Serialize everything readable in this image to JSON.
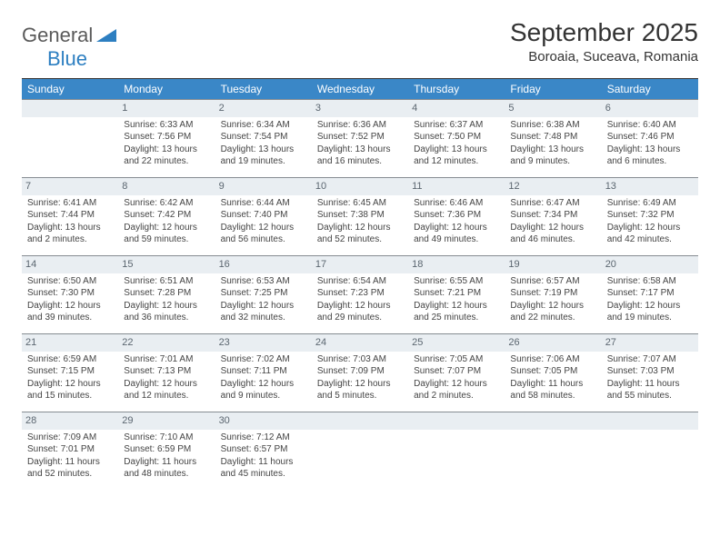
{
  "brand": {
    "line1": "General",
    "line2": "Blue"
  },
  "title": "September 2025",
  "location": "Boroaia, Suceava, Romania",
  "colors": {
    "header_bg": "#3a87c7",
    "header_text": "#ffffff",
    "daynum_bg": "#e9eef2",
    "daynum_border": "#868c92",
    "daynum_text": "#5b6670",
    "body_text": "#333333",
    "logo_blue": "#2d7fc1"
  },
  "weekdays": [
    "Sunday",
    "Monday",
    "Tuesday",
    "Wednesday",
    "Thursday",
    "Friday",
    "Saturday"
  ],
  "grid": [
    [
      null,
      {
        "n": "1",
        "sr": "Sunrise: 6:33 AM",
        "ss": "Sunset: 7:56 PM",
        "d1": "Daylight: 13 hours",
        "d2": "and 22 minutes."
      },
      {
        "n": "2",
        "sr": "Sunrise: 6:34 AM",
        "ss": "Sunset: 7:54 PM",
        "d1": "Daylight: 13 hours",
        "d2": "and 19 minutes."
      },
      {
        "n": "3",
        "sr": "Sunrise: 6:36 AM",
        "ss": "Sunset: 7:52 PM",
        "d1": "Daylight: 13 hours",
        "d2": "and 16 minutes."
      },
      {
        "n": "4",
        "sr": "Sunrise: 6:37 AM",
        "ss": "Sunset: 7:50 PM",
        "d1": "Daylight: 13 hours",
        "d2": "and 12 minutes."
      },
      {
        "n": "5",
        "sr": "Sunrise: 6:38 AM",
        "ss": "Sunset: 7:48 PM",
        "d1": "Daylight: 13 hours",
        "d2": "and 9 minutes."
      },
      {
        "n": "6",
        "sr": "Sunrise: 6:40 AM",
        "ss": "Sunset: 7:46 PM",
        "d1": "Daylight: 13 hours",
        "d2": "and 6 minutes."
      }
    ],
    [
      {
        "n": "7",
        "sr": "Sunrise: 6:41 AM",
        "ss": "Sunset: 7:44 PM",
        "d1": "Daylight: 13 hours",
        "d2": "and 2 minutes."
      },
      {
        "n": "8",
        "sr": "Sunrise: 6:42 AM",
        "ss": "Sunset: 7:42 PM",
        "d1": "Daylight: 12 hours",
        "d2": "and 59 minutes."
      },
      {
        "n": "9",
        "sr": "Sunrise: 6:44 AM",
        "ss": "Sunset: 7:40 PM",
        "d1": "Daylight: 12 hours",
        "d2": "and 56 minutes."
      },
      {
        "n": "10",
        "sr": "Sunrise: 6:45 AM",
        "ss": "Sunset: 7:38 PM",
        "d1": "Daylight: 12 hours",
        "d2": "and 52 minutes."
      },
      {
        "n": "11",
        "sr": "Sunrise: 6:46 AM",
        "ss": "Sunset: 7:36 PM",
        "d1": "Daylight: 12 hours",
        "d2": "and 49 minutes."
      },
      {
        "n": "12",
        "sr": "Sunrise: 6:47 AM",
        "ss": "Sunset: 7:34 PM",
        "d1": "Daylight: 12 hours",
        "d2": "and 46 minutes."
      },
      {
        "n": "13",
        "sr": "Sunrise: 6:49 AM",
        "ss": "Sunset: 7:32 PM",
        "d1": "Daylight: 12 hours",
        "d2": "and 42 minutes."
      }
    ],
    [
      {
        "n": "14",
        "sr": "Sunrise: 6:50 AM",
        "ss": "Sunset: 7:30 PM",
        "d1": "Daylight: 12 hours",
        "d2": "and 39 minutes."
      },
      {
        "n": "15",
        "sr": "Sunrise: 6:51 AM",
        "ss": "Sunset: 7:28 PM",
        "d1": "Daylight: 12 hours",
        "d2": "and 36 minutes."
      },
      {
        "n": "16",
        "sr": "Sunrise: 6:53 AM",
        "ss": "Sunset: 7:25 PM",
        "d1": "Daylight: 12 hours",
        "d2": "and 32 minutes."
      },
      {
        "n": "17",
        "sr": "Sunrise: 6:54 AM",
        "ss": "Sunset: 7:23 PM",
        "d1": "Daylight: 12 hours",
        "d2": "and 29 minutes."
      },
      {
        "n": "18",
        "sr": "Sunrise: 6:55 AM",
        "ss": "Sunset: 7:21 PM",
        "d1": "Daylight: 12 hours",
        "d2": "and 25 minutes."
      },
      {
        "n": "19",
        "sr": "Sunrise: 6:57 AM",
        "ss": "Sunset: 7:19 PM",
        "d1": "Daylight: 12 hours",
        "d2": "and 22 minutes."
      },
      {
        "n": "20",
        "sr": "Sunrise: 6:58 AM",
        "ss": "Sunset: 7:17 PM",
        "d1": "Daylight: 12 hours",
        "d2": "and 19 minutes."
      }
    ],
    [
      {
        "n": "21",
        "sr": "Sunrise: 6:59 AM",
        "ss": "Sunset: 7:15 PM",
        "d1": "Daylight: 12 hours",
        "d2": "and 15 minutes."
      },
      {
        "n": "22",
        "sr": "Sunrise: 7:01 AM",
        "ss": "Sunset: 7:13 PM",
        "d1": "Daylight: 12 hours",
        "d2": "and 12 minutes."
      },
      {
        "n": "23",
        "sr": "Sunrise: 7:02 AM",
        "ss": "Sunset: 7:11 PM",
        "d1": "Daylight: 12 hours",
        "d2": "and 9 minutes."
      },
      {
        "n": "24",
        "sr": "Sunrise: 7:03 AM",
        "ss": "Sunset: 7:09 PM",
        "d1": "Daylight: 12 hours",
        "d2": "and 5 minutes."
      },
      {
        "n": "25",
        "sr": "Sunrise: 7:05 AM",
        "ss": "Sunset: 7:07 PM",
        "d1": "Daylight: 12 hours",
        "d2": "and 2 minutes."
      },
      {
        "n": "26",
        "sr": "Sunrise: 7:06 AM",
        "ss": "Sunset: 7:05 PM",
        "d1": "Daylight: 11 hours",
        "d2": "and 58 minutes."
      },
      {
        "n": "27",
        "sr": "Sunrise: 7:07 AM",
        "ss": "Sunset: 7:03 PM",
        "d1": "Daylight: 11 hours",
        "d2": "and 55 minutes."
      }
    ],
    [
      {
        "n": "28",
        "sr": "Sunrise: 7:09 AM",
        "ss": "Sunset: 7:01 PM",
        "d1": "Daylight: 11 hours",
        "d2": "and 52 minutes."
      },
      {
        "n": "29",
        "sr": "Sunrise: 7:10 AM",
        "ss": "Sunset: 6:59 PM",
        "d1": "Daylight: 11 hours",
        "d2": "and 48 minutes."
      },
      {
        "n": "30",
        "sr": "Sunrise: 7:12 AM",
        "ss": "Sunset: 6:57 PM",
        "d1": "Daylight: 11 hours",
        "d2": "and 45 minutes."
      },
      null,
      null,
      null,
      null
    ]
  ]
}
